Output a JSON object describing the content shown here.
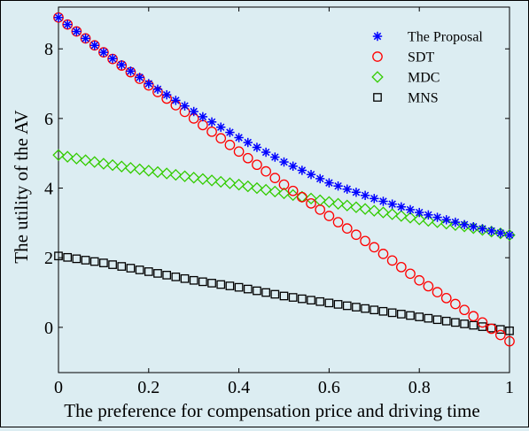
{
  "chart_data": {
    "type": "scatter",
    "title": "",
    "xlabel": "The preference for compensation price and driving time",
    "ylabel": "The utility of the AV",
    "xlim": [
      0,
      1
    ],
    "ylim": [
      -1.3,
      9.2
    ],
    "xticks": [
      0,
      0.2,
      0.4,
      0.6,
      0.8,
      1
    ],
    "xtick_labels": [
      "0",
      "0.2",
      "0.4",
      "0.6",
      "0.8",
      "1"
    ],
    "yticks": [
      0,
      2,
      4,
      6,
      8
    ],
    "ytick_labels": [
      "0",
      "2",
      "4",
      "6",
      "8"
    ],
    "grid": false,
    "legend": "top-right",
    "x_start": 0,
    "x_end": 1,
    "points_per_series": 51,
    "series": [
      {
        "name": "The Proposal",
        "marker": "asterisk",
        "color": "#0000ff",
        "anchors_x": [
          0,
          0.1,
          0.2,
          0.3,
          0.4,
          0.5,
          0.6,
          0.7,
          0.8,
          0.9,
          1.0
        ],
        "anchors_y": [
          8.9,
          7.9,
          7.0,
          6.2,
          5.45,
          4.75,
          4.15,
          3.7,
          3.3,
          2.95,
          2.65
        ]
      },
      {
        "name": "SDT",
        "marker": "circle",
        "color": "#ff0000",
        "anchors_x": [
          0,
          0.1,
          0.2,
          0.3,
          0.4,
          0.5,
          0.6,
          0.7,
          0.8,
          0.9,
          1.0
        ],
        "anchors_y": [
          8.9,
          7.9,
          6.95,
          6.0,
          5.05,
          4.1,
          3.2,
          2.3,
          1.35,
          0.5,
          -0.4
        ]
      },
      {
        "name": "MDC",
        "marker": "diamond",
        "color": "#33cc00",
        "anchors_x": [
          0,
          0.1,
          0.2,
          0.3,
          0.4,
          0.5,
          0.6,
          0.7,
          0.8,
          0.9,
          1.0
        ],
        "anchors_y": [
          4.95,
          4.7,
          4.5,
          4.3,
          4.1,
          3.85,
          3.6,
          3.35,
          3.1,
          2.9,
          2.65
        ]
      },
      {
        "name": "MNS",
        "marker": "square",
        "color": "#000000",
        "anchors_x": [
          0,
          0.1,
          0.2,
          0.3,
          0.4,
          0.5,
          0.6,
          0.7,
          0.8,
          0.9,
          1.0
        ],
        "anchors_y": [
          2.05,
          1.85,
          1.6,
          1.35,
          1.15,
          0.9,
          0.7,
          0.5,
          0.3,
          0.1,
          -0.1
        ]
      }
    ]
  }
}
